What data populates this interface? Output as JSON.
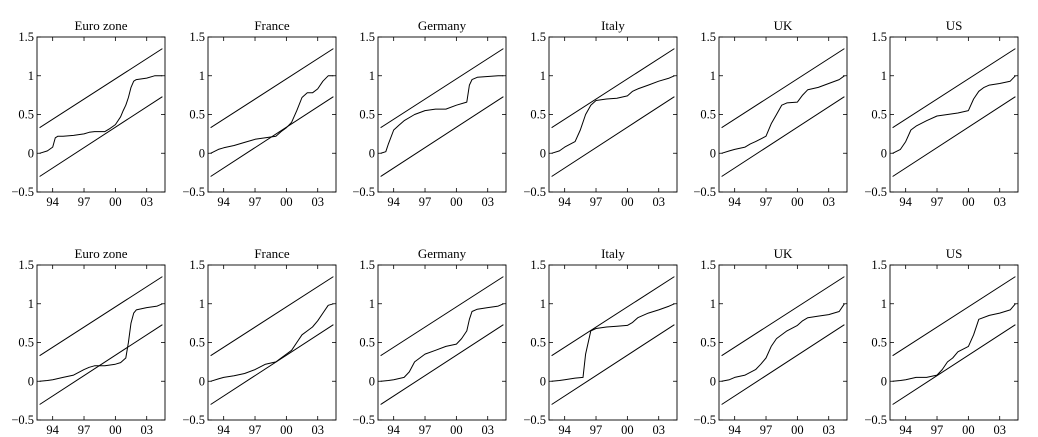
{
  "chart_data": [
    {
      "type": "line",
      "title": "Euro zone",
      "xlim": [
        1992.5,
        2004.75
      ],
      "ylim": [
        -0.5,
        1.5
      ],
      "xticks": [
        1994,
        1997,
        2000,
        2003
      ],
      "xticklabels": [
        "94",
        "97",
        "00",
        "03"
      ],
      "yticks": [
        -0.5,
        0,
        0.5,
        1,
        1.5
      ],
      "yticklabels": [
        "−0.5",
        "0",
        "0.5",
        "1",
        "1.5"
      ],
      "bands": [
        {
          "x": [
            1992.75,
            2004.5
          ],
          "y": [
            0.33,
            1.35
          ]
        },
        {
          "x": [
            1992.75,
            2004.5
          ],
          "y": [
            -0.3,
            0.73
          ]
        }
      ],
      "series": [
        {
          "x": [
            1992.75,
            1993.5,
            1994,
            1994.25,
            1994.5,
            1995,
            1996,
            1997,
            1997.5,
            1998,
            1999,
            1999.5,
            2000,
            2000.5,
            2000.75,
            2001,
            2001.25,
            2001.5,
            2001.75,
            2002,
            2003,
            2003.75,
            2004.5
          ],
          "y": [
            0,
            0.03,
            0.08,
            0.2,
            0.22,
            0.22,
            0.23,
            0.25,
            0.27,
            0.28,
            0.28,
            0.32,
            0.37,
            0.47,
            0.55,
            0.62,
            0.72,
            0.85,
            0.93,
            0.95,
            0.97,
            1.0,
            1.0
          ]
        }
      ]
    },
    {
      "type": "line",
      "title": "France",
      "xlim": [
        1992.5,
        2004.75
      ],
      "ylim": [
        -0.5,
        1.5
      ],
      "xticks": [
        1994,
        1997,
        2000,
        2003
      ],
      "xticklabels": [
        "94",
        "97",
        "00",
        "03"
      ],
      "yticks": [
        -0.5,
        0,
        0.5,
        1,
        1.5
      ],
      "yticklabels": [
        "−0.5",
        "0",
        "0.5",
        "1",
        "1.5"
      ],
      "bands": [
        {
          "x": [
            1992.75,
            2004.5
          ],
          "y": [
            0.33,
            1.35
          ]
        },
        {
          "x": [
            1992.75,
            2004.5
          ],
          "y": [
            -0.3,
            0.73
          ]
        }
      ],
      "series": [
        {
          "x": [
            1992.75,
            1993.5,
            1994,
            1995,
            1996,
            1997,
            1998,
            1999,
            1999.5,
            2000,
            2000.5,
            2001,
            2001.5,
            2002,
            2002.5,
            2003,
            2003.5,
            2004,
            2004.5
          ],
          "y": [
            0,
            0.05,
            0.07,
            0.1,
            0.14,
            0.18,
            0.2,
            0.22,
            0.28,
            0.33,
            0.4,
            0.55,
            0.72,
            0.78,
            0.78,
            0.83,
            0.93,
            1.0,
            1.0
          ]
        }
      ]
    },
    {
      "type": "line",
      "title": "Germany",
      "xlim": [
        1992.5,
        2004.75
      ],
      "ylim": [
        -0.5,
        1.5
      ],
      "xticks": [
        1994,
        1997,
        2000,
        2003
      ],
      "xticklabels": [
        "94",
        "97",
        "00",
        "03"
      ],
      "yticks": [
        -0.5,
        0,
        0.5,
        1,
        1.5
      ],
      "yticklabels": [
        "−0.5",
        "0",
        "0.5",
        "1",
        "1.5"
      ],
      "bands": [
        {
          "x": [
            1992.75,
            2004.5
          ],
          "y": [
            0.33,
            1.35
          ]
        },
        {
          "x": [
            1992.75,
            2004.5
          ],
          "y": [
            -0.3,
            0.73
          ]
        }
      ],
      "series": [
        {
          "x": [
            1992.75,
            1993.25,
            1993.5,
            1994,
            1994.5,
            1995,
            1996,
            1997,
            1998,
            1999,
            2000,
            2000.75,
            2001,
            2001.25,
            2001.5,
            2002,
            2003,
            2004,
            2004.5
          ],
          "y": [
            0,
            0.02,
            0.12,
            0.3,
            0.36,
            0.42,
            0.5,
            0.55,
            0.57,
            0.57,
            0.62,
            0.65,
            0.66,
            0.88,
            0.95,
            0.98,
            0.99,
            1.0,
            1.0
          ]
        }
      ]
    },
    {
      "type": "line",
      "title": "Italy",
      "xlim": [
        1992.5,
        2004.75
      ],
      "ylim": [
        -0.5,
        1.5
      ],
      "xticks": [
        1994,
        1997,
        2000,
        2003
      ],
      "xticklabels": [
        "94",
        "97",
        "00",
        "03"
      ],
      "yticks": [
        -0.5,
        0,
        0.5,
        1,
        1.5
      ],
      "yticklabels": [
        "−0.5",
        "0",
        "0.5",
        "1",
        "1.5"
      ],
      "bands": [
        {
          "x": [
            1992.75,
            2004.5
          ],
          "y": [
            0.33,
            1.35
          ]
        },
        {
          "x": [
            1992.75,
            2004.5
          ],
          "y": [
            -0.3,
            0.73
          ]
        }
      ],
      "series": [
        {
          "x": [
            1992.75,
            1993.5,
            1994,
            1995,
            1995.5,
            1996,
            1996.5,
            1997,
            1998,
            1999,
            2000,
            2000.5,
            2001,
            2002,
            2003,
            2004,
            2004.5
          ],
          "y": [
            0,
            0.03,
            0.08,
            0.15,
            0.3,
            0.5,
            0.62,
            0.68,
            0.7,
            0.71,
            0.74,
            0.8,
            0.83,
            0.88,
            0.93,
            0.97,
            1.0
          ]
        }
      ]
    },
    {
      "type": "line",
      "title": "UK",
      "xlim": [
        1992.5,
        2004.75
      ],
      "ylim": [
        -0.5,
        1.5
      ],
      "xticks": [
        1994,
        1997,
        2000,
        2003
      ],
      "xticklabels": [
        "94",
        "97",
        "00",
        "03"
      ],
      "yticks": [
        -0.5,
        0,
        0.5,
        1,
        1.5
      ],
      "yticklabels": [
        "−0.5",
        "0",
        "0.5",
        "1",
        "1.5"
      ],
      "bands": [
        {
          "x": [
            1992.75,
            2004.5
          ],
          "y": [
            0.33,
            1.35
          ]
        },
        {
          "x": [
            1992.75,
            2004.5
          ],
          "y": [
            -0.3,
            0.73
          ]
        }
      ],
      "series": [
        {
          "x": [
            1992.75,
            1993.5,
            1994,
            1995,
            1995.5,
            1996,
            1997,
            1997.5,
            1998,
            1998.5,
            1999,
            2000,
            2000.5,
            2001,
            2002,
            2003,
            2004,
            2004.5
          ],
          "y": [
            0,
            0.03,
            0.05,
            0.08,
            0.12,
            0.15,
            0.22,
            0.38,
            0.5,
            0.62,
            0.65,
            0.66,
            0.75,
            0.82,
            0.85,
            0.9,
            0.95,
            1.0
          ]
        }
      ]
    },
    {
      "type": "line",
      "title": "US",
      "xlim": [
        1992.5,
        2004.75
      ],
      "ylim": [
        -0.5,
        1.5
      ],
      "xticks": [
        1994,
        1997,
        2000,
        2003
      ],
      "xticklabels": [
        "94",
        "97",
        "00",
        "03"
      ],
      "yticks": [
        -0.5,
        0,
        0.5,
        1,
        1.5
      ],
      "yticklabels": [
        "−0.5",
        "0",
        "0.5",
        "1",
        "1.5"
      ],
      "bands": [
        {
          "x": [
            1992.75,
            2004.5
          ],
          "y": [
            0.33,
            1.35
          ]
        },
        {
          "x": [
            1992.75,
            2004.5
          ],
          "y": [
            -0.3,
            0.73
          ]
        }
      ],
      "series": [
        {
          "x": [
            1992.75,
            1993.5,
            1994,
            1994.5,
            1995,
            1996,
            1997,
            1998,
            1999,
            2000,
            2000.5,
            2001,
            2001.5,
            2002,
            2003,
            2004,
            2004.5
          ],
          "y": [
            0,
            0.05,
            0.15,
            0.3,
            0.35,
            0.42,
            0.48,
            0.5,
            0.52,
            0.55,
            0.7,
            0.8,
            0.85,
            0.88,
            0.9,
            0.93,
            1.0
          ]
        }
      ]
    },
    {
      "type": "line",
      "title": "Euro zone",
      "xlim": [
        1992.5,
        2004.75
      ],
      "ylim": [
        -0.5,
        1.5
      ],
      "xticks": [
        1994,
        1997,
        2000,
        2003
      ],
      "xticklabels": [
        "94",
        "97",
        "00",
        "03"
      ],
      "yticks": [
        -0.5,
        0,
        0.5,
        1,
        1.5
      ],
      "yticklabels": [
        "−0.5",
        "0",
        "0.5",
        "1",
        "1.5"
      ],
      "bands": [
        {
          "x": [
            1992.75,
            2004.5
          ],
          "y": [
            0.33,
            1.35
          ]
        },
        {
          "x": [
            1992.75,
            2004.5
          ],
          "y": [
            -0.3,
            0.73
          ]
        }
      ],
      "series": [
        {
          "x": [
            1992.75,
            1993.5,
            1994,
            1995,
            1996,
            1997,
            1997.5,
            1998,
            1999,
            2000,
            2000.5,
            2001,
            2001.25,
            2001.5,
            2001.75,
            2002,
            2003,
            2004,
            2004.5
          ],
          "y": [
            0,
            0.01,
            0.02,
            0.05,
            0.08,
            0.15,
            0.18,
            0.2,
            0.2,
            0.22,
            0.24,
            0.3,
            0.5,
            0.75,
            0.88,
            0.92,
            0.95,
            0.97,
            1.0
          ]
        }
      ]
    },
    {
      "type": "line",
      "title": "France",
      "xlim": [
        1992.5,
        2004.75
      ],
      "ylim": [
        -0.5,
        1.5
      ],
      "xticks": [
        1994,
        1997,
        2000,
        2003
      ],
      "xticklabels": [
        "94",
        "97",
        "00",
        "03"
      ],
      "yticks": [
        -0.5,
        0,
        0.5,
        1,
        1.5
      ],
      "yticklabels": [
        "−0.5",
        "0",
        "0.5",
        "1",
        "1.5"
      ],
      "bands": [
        {
          "x": [
            1992.75,
            2004.5
          ],
          "y": [
            0.33,
            1.35
          ]
        },
        {
          "x": [
            1992.75,
            2004.5
          ],
          "y": [
            -0.3,
            0.73
          ]
        }
      ],
      "series": [
        {
          "x": [
            1992.75,
            1993.5,
            1994,
            1995,
            1996,
            1997,
            1998,
            1999,
            1999.5,
            2000,
            2000.5,
            2001,
            2001.5,
            2002,
            2002.5,
            2003,
            2003.5,
            2004,
            2004.5
          ],
          "y": [
            0,
            0.03,
            0.05,
            0.07,
            0.1,
            0.15,
            0.22,
            0.25,
            0.3,
            0.35,
            0.4,
            0.5,
            0.6,
            0.65,
            0.7,
            0.78,
            0.88,
            0.98,
            1.0
          ]
        }
      ]
    },
    {
      "type": "line",
      "title": "Germany",
      "xlim": [
        1992.5,
        2004.75
      ],
      "ylim": [
        -0.5,
        1.5
      ],
      "xticks": [
        1994,
        1997,
        2000,
        2003
      ],
      "xticklabels": [
        "94",
        "97",
        "00",
        "03"
      ],
      "yticks": [
        -0.5,
        0,
        0.5,
        1,
        1.5
      ],
      "yticklabels": [
        "−0.5",
        "0",
        "0.5",
        "1",
        "1.5"
      ],
      "bands": [
        {
          "x": [
            1992.75,
            2004.5
          ],
          "y": [
            0.33,
            1.35
          ]
        },
        {
          "x": [
            1992.75,
            2004.5
          ],
          "y": [
            -0.3,
            0.73
          ]
        }
      ],
      "series": [
        {
          "x": [
            1992.75,
            1993.5,
            1994,
            1995,
            1995.5,
            1996,
            1997,
            1998,
            1999,
            2000,
            2000.5,
            2001,
            2001.25,
            2001.5,
            2002,
            2003,
            2004,
            2004.5
          ],
          "y": [
            0,
            0.01,
            0.02,
            0.05,
            0.12,
            0.25,
            0.35,
            0.4,
            0.45,
            0.48,
            0.55,
            0.65,
            0.8,
            0.9,
            0.93,
            0.95,
            0.97,
            1.0
          ]
        }
      ]
    },
    {
      "type": "line",
      "title": "Italy",
      "xlim": [
        1992.5,
        2004.75
      ],
      "ylim": [
        -0.5,
        1.5
      ],
      "xticks": [
        1994,
        1997,
        2000,
        2003
      ],
      "xticklabels": [
        "94",
        "97",
        "00",
        "03"
      ],
      "yticks": [
        -0.5,
        0,
        0.5,
        1,
        1.5
      ],
      "yticklabels": [
        "−0.5",
        "0",
        "0.5",
        "1",
        "1.5"
      ],
      "bands": [
        {
          "x": [
            1992.75,
            2004.5
          ],
          "y": [
            0.33,
            1.35
          ]
        },
        {
          "x": [
            1992.75,
            2004.5
          ],
          "y": [
            -0.3,
            0.73
          ]
        }
      ],
      "series": [
        {
          "x": [
            1992.75,
            1993.5,
            1994,
            1995,
            1995.75,
            1996,
            1996.5,
            1997,
            1998,
            1999,
            2000,
            2000.5,
            2001,
            2002,
            2003,
            2004,
            2004.5
          ],
          "y": [
            0,
            0.01,
            0.02,
            0.04,
            0.05,
            0.35,
            0.65,
            0.68,
            0.7,
            0.71,
            0.72,
            0.76,
            0.82,
            0.88,
            0.92,
            0.97,
            1.0
          ]
        }
      ]
    },
    {
      "type": "line",
      "title": "UK",
      "xlim": [
        1992.5,
        2004.75
      ],
      "ylim": [
        -0.5,
        1.5
      ],
      "xticks": [
        1994,
        1997,
        2000,
        2003
      ],
      "xticklabels": [
        "94",
        "97",
        "00",
        "03"
      ],
      "yticks": [
        -0.5,
        0,
        0.5,
        1,
        1.5
      ],
      "yticklabels": [
        "−0.5",
        "0",
        "0.5",
        "1",
        "1.5"
      ],
      "bands": [
        {
          "x": [
            1992.75,
            2004.5
          ],
          "y": [
            0.33,
            1.35
          ]
        },
        {
          "x": [
            1992.75,
            2004.5
          ],
          "y": [
            -0.3,
            0.73
          ]
        }
      ],
      "series": [
        {
          "x": [
            1992.75,
            1993.5,
            1994,
            1995,
            1996,
            1996.5,
            1997,
            1997.5,
            1998,
            1999,
            2000,
            2000.5,
            2001,
            2002,
            2003,
            2004,
            2004.5
          ],
          "y": [
            0,
            0.02,
            0.05,
            0.08,
            0.15,
            0.22,
            0.3,
            0.45,
            0.55,
            0.65,
            0.72,
            0.78,
            0.82,
            0.84,
            0.86,
            0.9,
            1.0
          ]
        }
      ]
    },
    {
      "type": "line",
      "title": "US",
      "xlim": [
        1992.5,
        2004.75
      ],
      "ylim": [
        -0.5,
        1.5
      ],
      "xticks": [
        1994,
        1997,
        2000,
        2003
      ],
      "xticklabels": [
        "94",
        "97",
        "00",
        "03"
      ],
      "yticks": [
        -0.5,
        0,
        0.5,
        1,
        1.5
      ],
      "yticklabels": [
        "−0.5",
        "0",
        "0.5",
        "1",
        "1.5"
      ],
      "bands": [
        {
          "x": [
            1992.75,
            2004.5
          ],
          "y": [
            0.33,
            1.35
          ]
        },
        {
          "x": [
            1992.75,
            2004.5
          ],
          "y": [
            -0.3,
            0.73
          ]
        }
      ],
      "series": [
        {
          "x": [
            1992.75,
            1993.5,
            1994,
            1995,
            1996,
            1997,
            1997.5,
            1998,
            1998.5,
            1999,
            2000,
            2000.5,
            2001,
            2002,
            2003,
            2004,
            2004.5
          ],
          "y": [
            0,
            0.01,
            0.02,
            0.05,
            0.05,
            0.08,
            0.15,
            0.25,
            0.3,
            0.38,
            0.45,
            0.6,
            0.8,
            0.85,
            0.88,
            0.92,
            1.0
          ]
        }
      ]
    }
  ]
}
